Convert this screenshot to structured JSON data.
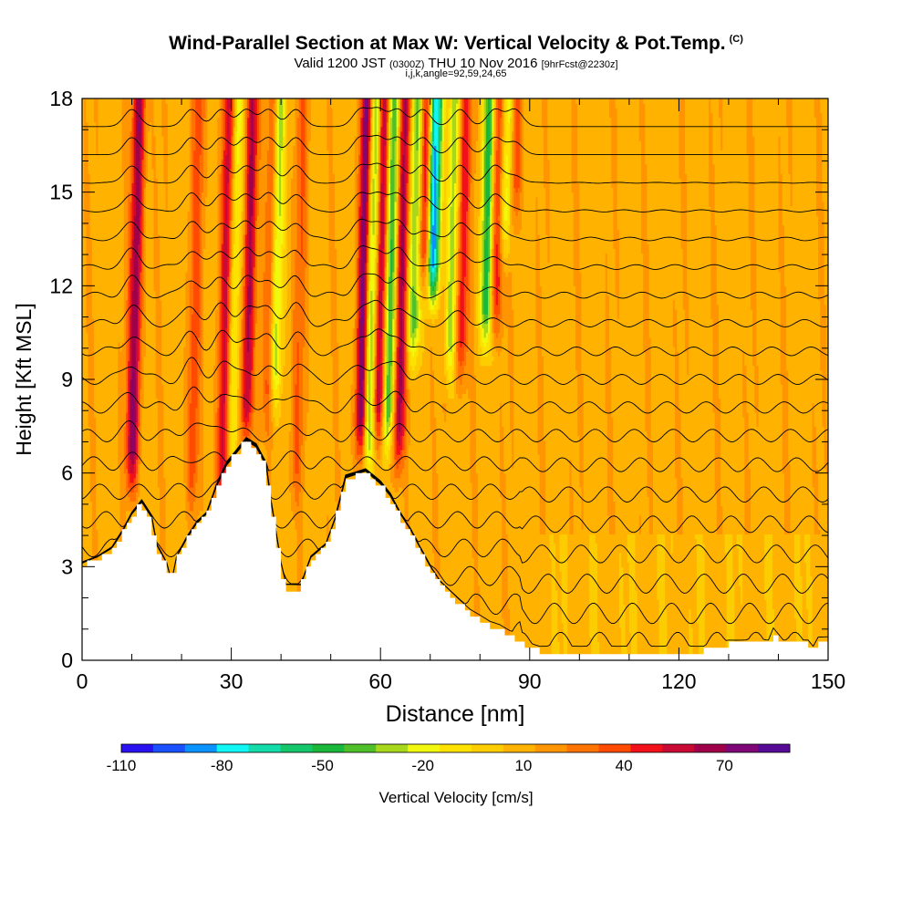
{
  "title": {
    "main": "Wind-Parallel Section at Max W: Vertical Velocity & Pot.Temp.",
    "copyright": "(C)",
    "valid_prefix": "Valid 1200 JST",
    "valid_utc": "(0300Z)",
    "valid_date": "THU 10 Nov 2016",
    "forecast": "[9hrFcst@2230z]",
    "indices": "i,j,k,angle=92,59,24,65"
  },
  "chart_data": {
    "type": "heatmap",
    "xlabel": "Distance [nm]",
    "ylabel": "Height [Kft MSL]",
    "xlim": [
      0,
      150
    ],
    "ylim": [
      0,
      18
    ],
    "x_ticks": [
      0,
      30,
      60,
      90,
      120,
      150
    ],
    "y_ticks": [
      0,
      3,
      6,
      9,
      12,
      15,
      18
    ],
    "colorbar": {
      "label": "Vertical Velocity [cm/s]",
      "range": [
        -110,
        80
      ],
      "tick_values": [
        -110,
        -80,
        -50,
        -20,
        10,
        40,
        70
      ],
      "tick_labels": [
        "-110",
        "-80",
        "-50",
        "-20",
        "10",
        "40",
        "70"
      ],
      "colors": [
        "#2a12f0",
        "#1a50ff",
        "#0a92ff",
        "#11f5f5",
        "#13dbaa",
        "#14c76a",
        "#1ab83a",
        "#4fc02a",
        "#a8d81c",
        "#f2f70f",
        "#fde200",
        "#fccd00",
        "#ffb300",
        "#ff9500",
        "#ff7300",
        "#ff4b00",
        "#f2111a",
        "#c90a35",
        "#a0004a",
        "#7e0676",
        "#560a96"
      ]
    },
    "updrafts": [
      {
        "x": 10,
        "y_base": 5.5,
        "y_top": 6.3,
        "w": 60
      },
      {
        "x": 22,
        "y_base": 4.9,
        "y_top": 6.3,
        "w": 25
      },
      {
        "x": 28,
        "y_base": 4.8,
        "y_top": 18,
        "w": 45
      },
      {
        "x": 33,
        "y_base": 7.0,
        "y_top": 18,
        "w": 55
      },
      {
        "x": 37.5,
        "y_base": 7.5,
        "y_top": 18,
        "w": 35
      },
      {
        "x": 43,
        "y_base": 5.0,
        "y_top": 8.0,
        "w": 20
      },
      {
        "x": 56,
        "y_base": 6.5,
        "y_top": 18,
        "w": 72
      },
      {
        "x": 59.5,
        "y_base": 7.0,
        "y_top": 18,
        "w": 60
      },
      {
        "x": 63.5,
        "y_base": 6.2,
        "y_top": 18,
        "w": 55
      },
      {
        "x": 68.5,
        "y_base": 12.0,
        "y_top": 18,
        "w": 48
      },
      {
        "x": 76,
        "y_base": 9.0,
        "y_top": 18,
        "w": 40
      },
      {
        "x": 83,
        "y_base": 10.5,
        "y_top": 18,
        "w": 40
      },
      {
        "x": 87,
        "y_base": 14.0,
        "y_top": 18,
        "w": 30
      }
    ],
    "downdrafts": [
      {
        "x": 30,
        "y_base": 6.0,
        "y_top": 18,
        "w": -30
      },
      {
        "x": 38.5,
        "y_base": 8.0,
        "y_top": 18,
        "w": -50
      },
      {
        "x": 57.5,
        "y_base": 6.0,
        "y_top": 10,
        "w": -60
      },
      {
        "x": 61.5,
        "y_base": 6.8,
        "y_top": 18,
        "w": -60
      },
      {
        "x": 66.5,
        "y_base": 9.5,
        "y_top": 18,
        "w": -50
      },
      {
        "x": 70.5,
        "y_base": 11.5,
        "y_top": 18,
        "w": -100
      },
      {
        "x": 74,
        "y_base": 9.0,
        "y_top": 18,
        "w": -40
      },
      {
        "x": 81,
        "y_base": 10.0,
        "y_top": 18,
        "w": -60
      },
      {
        "x": 85,
        "y_base": 13.0,
        "y_top": 18,
        "w": -40
      }
    ],
    "terrain": [
      [
        0,
        3.0
      ],
      [
        3,
        3.2
      ],
      [
        6,
        3.5
      ],
      [
        8,
        4.0
      ],
      [
        10,
        4.6
      ],
      [
        12,
        5.0
      ],
      [
        14,
        4.5
      ],
      [
        15,
        3.6
      ],
      [
        17,
        3.0
      ],
      [
        18,
        2.4
      ],
      [
        19,
        3.2
      ],
      [
        21,
        3.8
      ],
      [
        23,
        4.3
      ],
      [
        25,
        4.6
      ],
      [
        27,
        5.5
      ],
      [
        29,
        6.2
      ],
      [
        31,
        6.6
      ],
      [
        33,
        7.0
      ],
      [
        35,
        6.8
      ],
      [
        37,
        6.2
      ],
      [
        38,
        5.0
      ],
      [
        39,
        4.0
      ],
      [
        40,
        3.0
      ],
      [
        41,
        2.3
      ],
      [
        44,
        2.3
      ],
      [
        46,
        3.2
      ],
      [
        49,
        3.6
      ],
      [
        51,
        4.5
      ],
      [
        53,
        5.8
      ],
      [
        57,
        6.0
      ],
      [
        60,
        5.6
      ],
      [
        62,
        5.2
      ],
      [
        64,
        4.6
      ],
      [
        66,
        4.1
      ],
      [
        68,
        3.5
      ],
      [
        70,
        2.9
      ],
      [
        72,
        2.4
      ],
      [
        74,
        2.1
      ],
      [
        76,
        1.8
      ],
      [
        78,
        1.5
      ],
      [
        80,
        1.3
      ],
      [
        82,
        1.1
      ],
      [
        84,
        1.0
      ],
      [
        86,
        0.8
      ],
      [
        88,
        0.6
      ],
      [
        90,
        0.4
      ],
      [
        92,
        0.3
      ],
      [
        94,
        0.3
      ],
      [
        100,
        0.3
      ],
      [
        110,
        0.3
      ],
      [
        120,
        0.3
      ],
      [
        125,
        0.3
      ],
      [
        130,
        0.5
      ],
      [
        138,
        0.5
      ],
      [
        139,
        0.9
      ],
      [
        141,
        0.5
      ],
      [
        146,
        0.5
      ],
      [
        147,
        0.3
      ],
      [
        148,
        0.6
      ],
      [
        150,
        0.6
      ]
    ],
    "isentrope_spacing_kft": 0.9
  }
}
